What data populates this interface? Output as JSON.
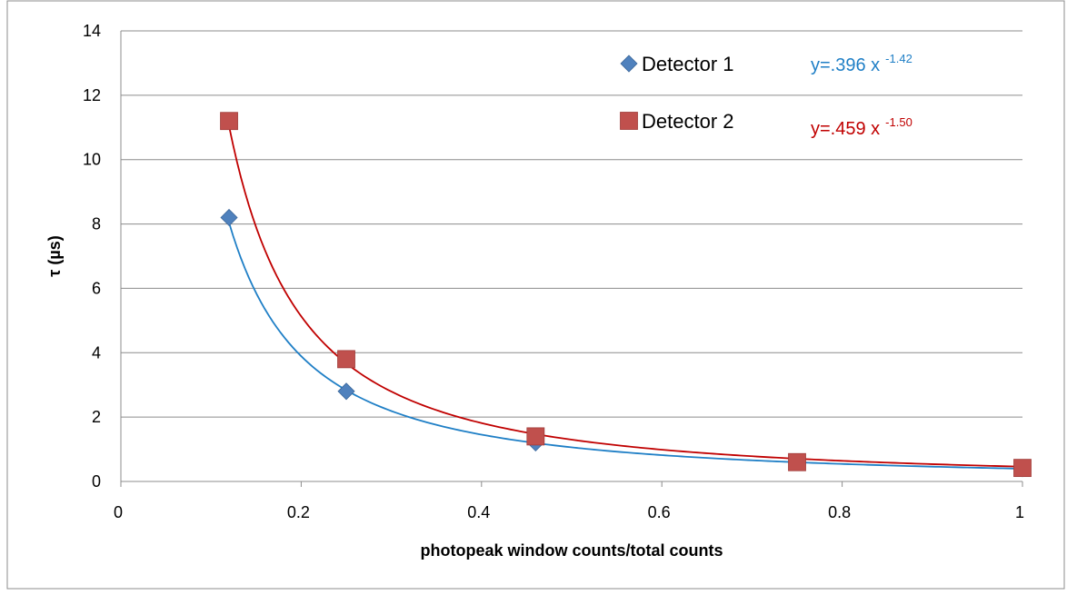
{
  "chart_data": {
    "type": "scatter",
    "x_label": "photopeak window counts/total counts",
    "y_label": "τ (µs)",
    "xlim": [
      0,
      1
    ],
    "xticks": [
      0,
      0.2,
      0.4,
      0.6,
      0.8,
      1
    ],
    "ylim": [
      0,
      14
    ],
    "yticks": [
      0,
      2,
      4,
      6,
      8,
      10,
      12,
      14
    ],
    "grid": true,
    "legend": "top-right",
    "series": [
      {
        "name": "Detector 1",
        "color": "#4f81bd",
        "marker": "diamond",
        "x": [
          0.12,
          0.25,
          0.46,
          0.75,
          1
        ],
        "values": [
          8.2,
          2.8,
          1.2,
          0.6,
          0.4
        ],
        "trendline": {
          "type": "power",
          "color": "#1f7fc6",
          "coef": {
            "value": 0.396,
            "label": "y=.396 x"
          },
          "exponent": {
            "value": -1.42,
            "label": "-1.42"
          }
        }
      },
      {
        "name": "Detector 2",
        "color": "#c0504d",
        "marker": "square",
        "x": [
          0.12,
          0.25,
          0.46,
          0.75,
          1
        ],
        "values": [
          11.2,
          3.8,
          1.4,
          0.6,
          0.42
        ],
        "trendline": {
          "type": "power",
          "color": "#c00000",
          "coef": {
            "value": 0.459,
            "label": "y=.459 x"
          },
          "exponent": {
            "value": -1.5,
            "label": "-1.50"
          }
        }
      }
    ]
  }
}
